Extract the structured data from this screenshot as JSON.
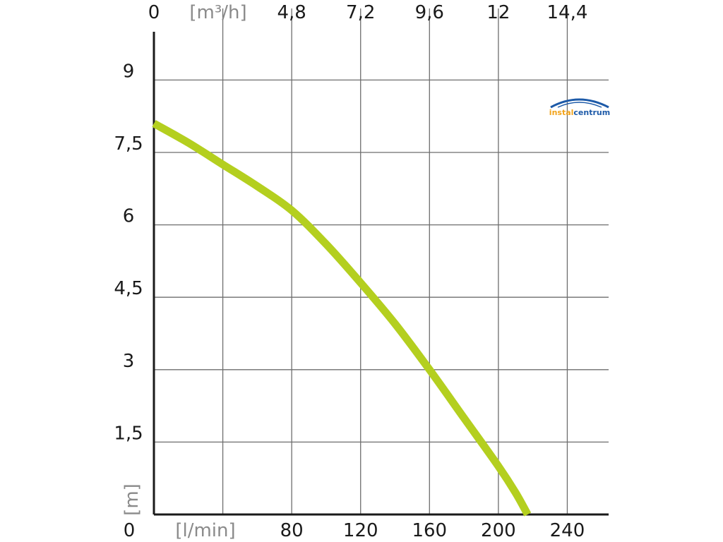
{
  "chart_data": {
    "type": "line",
    "x": [
      0,
      20,
      40,
      60,
      80,
      100,
      120,
      140,
      160,
      180,
      200,
      210,
      217
    ],
    "series": [
      {
        "values": [
          8.1,
          7.7,
          7.25,
          6.8,
          6.3,
          5.6,
          4.8,
          3.95,
          3.0,
          2.0,
          1.0,
          0.45,
          0
        ]
      }
    ],
    "series_color": "#b4cf1f",
    "xlim": [
      0,
      264
    ],
    "ylim": [
      0,
      10
    ],
    "x_ticks": [
      0,
      80,
      120,
      160,
      200,
      240
    ],
    "x_tick_labels": [
      "0",
      "80",
      "120",
      "160",
      "200",
      "240"
    ],
    "x_unit_label": "[l/min]",
    "x2_ticks": [
      0,
      80,
      120,
      160,
      200,
      240
    ],
    "x2_tick_labels": [
      "0",
      "4,8",
      "7,2",
      "9,6",
      "12",
      "14,4"
    ],
    "x2_unit_label": "[m³/h]",
    "x_grid": [
      0,
      40,
      80,
      120,
      160,
      200,
      240
    ],
    "y_ticks": [
      1.5,
      3,
      4.5,
      6,
      7.5,
      9
    ],
    "y_tick_labels": [
      "1,5",
      "3",
      "4,5",
      "6",
      "7,5",
      "9"
    ],
    "y_unit_label": "[m]",
    "grid": true,
    "logo": {
      "left": "instal",
      "right": "centrum"
    },
    "logo_colors": {
      "left": "#f2a31a",
      "right": "#1d5aa8"
    }
  }
}
